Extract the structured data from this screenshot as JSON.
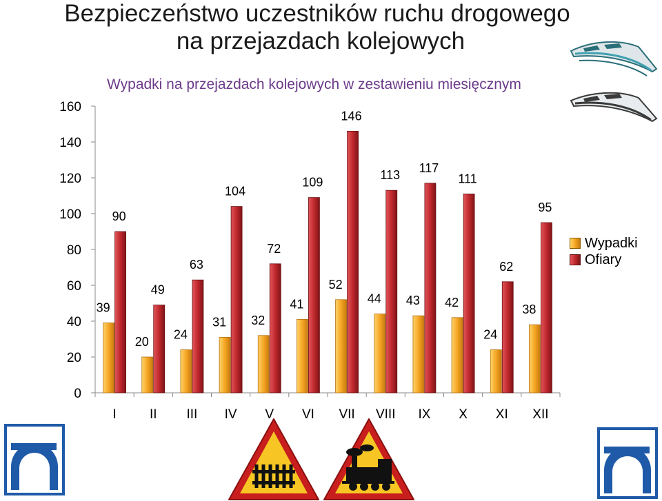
{
  "page": {
    "title_line1": "Bezpieczeństwo uczestników ruchu drogowego",
    "title_line2": "na przejazdach kolejowych"
  },
  "chart_data": {
    "type": "bar",
    "title": "Wypadki na przejazdach kolejowych w zestawieniu miesięcznym",
    "categories": [
      "I",
      "II",
      "III",
      "IV",
      "V",
      "VI",
      "VII",
      "VIII",
      "IX",
      "X",
      "XI",
      "XII"
    ],
    "series": [
      {
        "name": "Wypadki",
        "color": "#f0a020",
        "values": [
          39,
          20,
          24,
          31,
          32,
          41,
          52,
          44,
          43,
          42,
          24,
          38
        ]
      },
      {
        "name": "Ofiary",
        "color": "#c0282d",
        "values": [
          90,
          49,
          63,
          104,
          72,
          109,
          146,
          113,
          117,
          111,
          62,
          95
        ]
      }
    ],
    "ylim": [
      0,
      160
    ],
    "yticks": [
      0,
      20,
      40,
      60,
      80,
      100,
      120,
      140,
      160
    ],
    "xlabel": "",
    "ylabel": "",
    "legend": "right",
    "grid": false
  },
  "icons": {
    "train_top": "high-speed-train-icon",
    "train_bottom": "high-speed-train-icon",
    "logo_left": "railway-logo-icon",
    "logo_right": "railway-logo-icon",
    "sign_left": "level-crossing-with-barrier-sign-icon",
    "sign_right": "level-crossing-without-barrier-sign-icon"
  }
}
